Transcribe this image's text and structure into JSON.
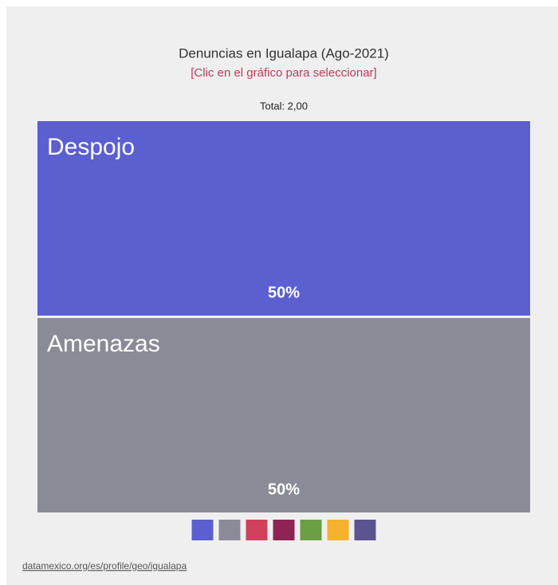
{
  "chart_data": {
    "type": "treemap",
    "title": "Denuncias en Igualapa (Ago-2021)",
    "subtitle": "[Clic en el gráfico para seleccionar]",
    "total": "Total: 2,00",
    "categories": [
      "Despojo",
      "Amenazas"
    ],
    "values": [
      50,
      50
    ],
    "value_labels": [
      "50%",
      "50%"
    ],
    "colors": [
      "#5b5fcf",
      "#8b8b97"
    ],
    "legend_colors": [
      "#5b5fcf",
      "#8b8b97",
      "#d0405a",
      "#8e2454",
      "#6a9f44",
      "#f5b22e",
      "#5c5491"
    ],
    "source": "datamexico.org/es/profile/geo/igualapa"
  }
}
